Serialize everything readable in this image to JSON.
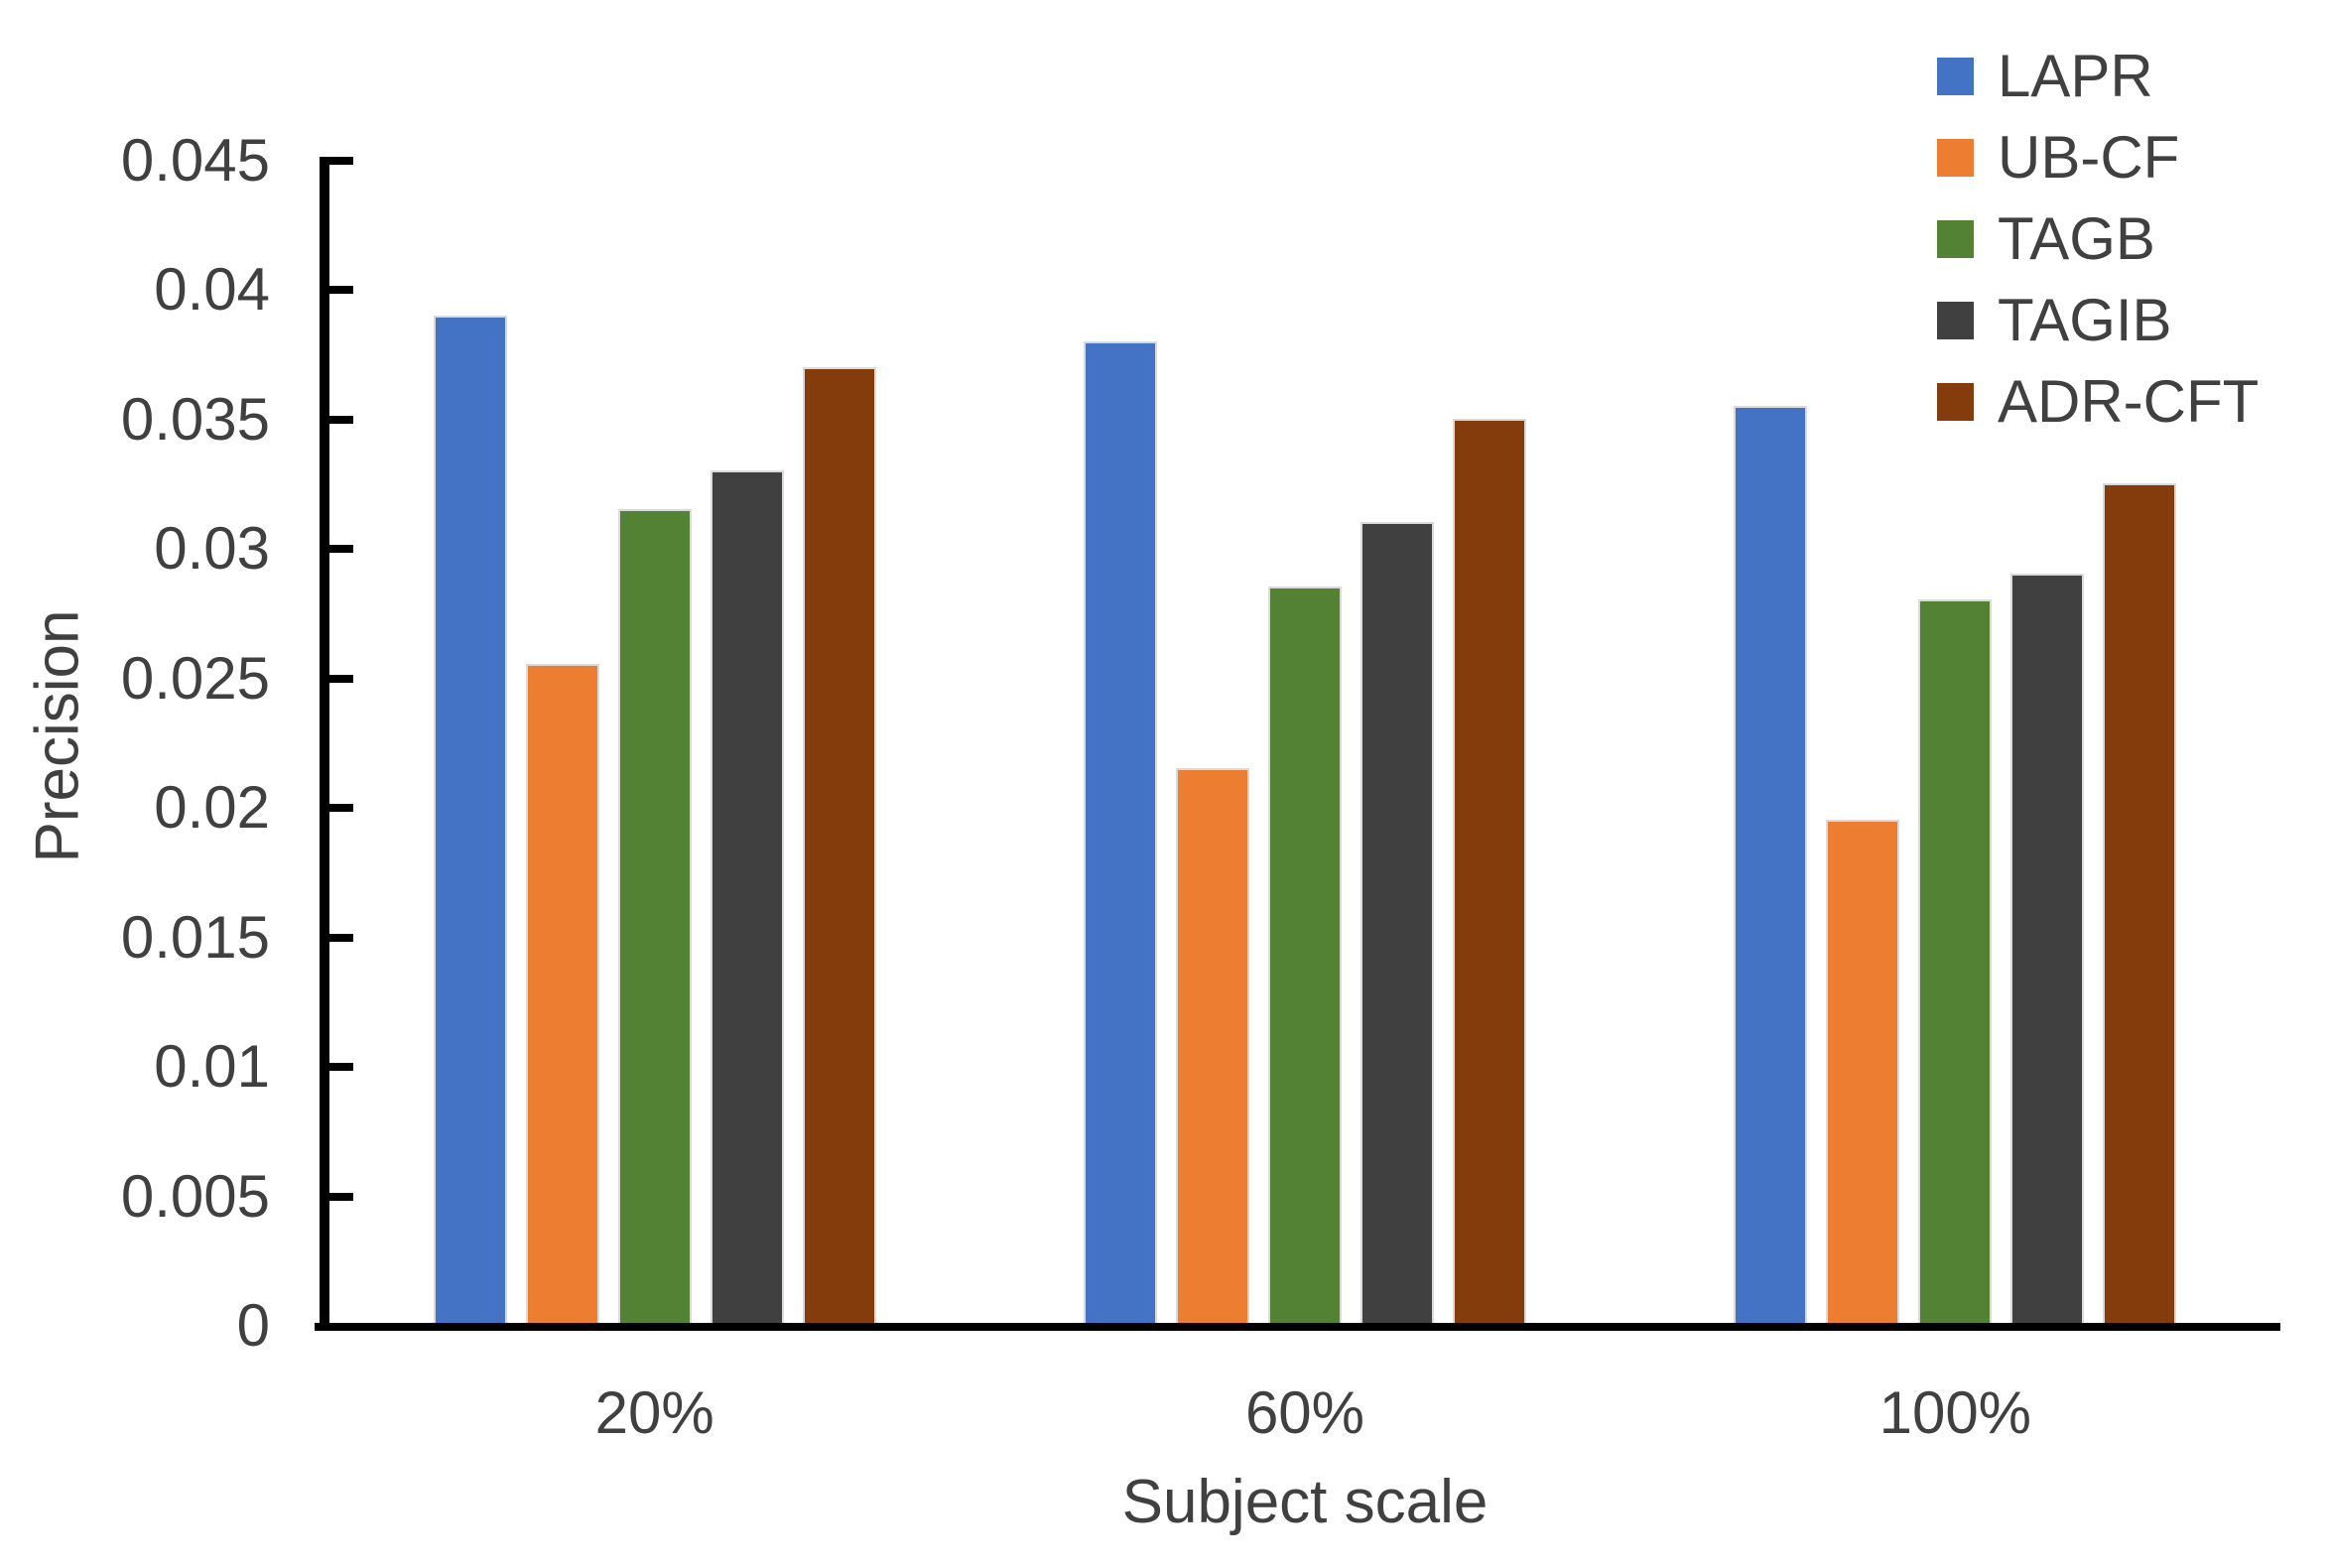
{
  "chart_data": {
    "type": "bar",
    "title": "",
    "categories": [
      "20%",
      "60%",
      "100%"
    ],
    "series": [
      {
        "name": "LAPR",
        "color": "#4472C4",
        "values": [
          0.039,
          0.038,
          0.0355
        ]
      },
      {
        "name": "UB-CF",
        "color": "#ED7D31",
        "values": [
          0.0255,
          0.0215,
          0.0195
        ]
      },
      {
        "name": "TAGB",
        "color": "#548235",
        "values": [
          0.0315,
          0.0285,
          0.028
        ]
      },
      {
        "name": "TAGIB",
        "color": "#404040",
        "values": [
          0.033,
          0.031,
          0.029
        ]
      },
      {
        "name": "ADR-CFT",
        "color": "#843C0C",
        "values": [
          0.037,
          0.035,
          0.0325
        ]
      }
    ],
    "xlabel": "Subject scale",
    "ylabel": "Precision",
    "ylim": [
      0,
      0.045
    ],
    "ytick_step": 0.005,
    "ytick_labels": [
      "0",
      "0.005",
      "0.01",
      "0.015",
      "0.02",
      "0.025",
      "0.03",
      "0.035",
      "0.04",
      "0.045"
    ],
    "grid": false,
    "legend_position": "top-right",
    "axis_color": "#000000",
    "text_color": "#404040"
  }
}
